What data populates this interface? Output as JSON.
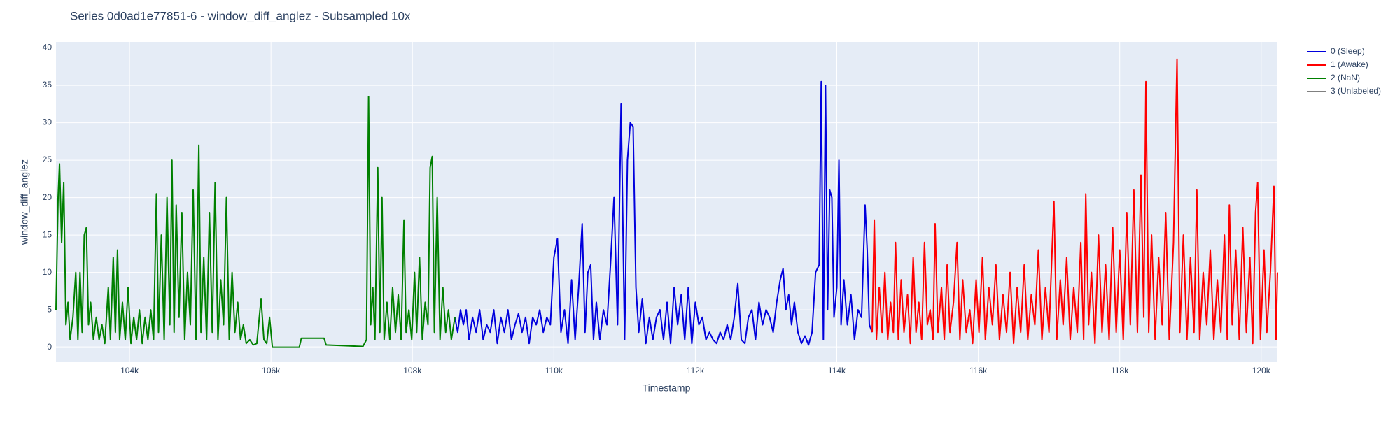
{
  "chart_data": {
    "type": "line",
    "title": "Series 0d0ad1e77851-6 - window_diff_anglez - Subsampled 10x",
    "x_label": "Timestamp",
    "y_label": "window_diff_anglez",
    "xlim": [
      102960,
      120230
    ],
    "ylim": [
      -2,
      40.8
    ],
    "xticks": [
      {
        "value": 104000,
        "label": "104k"
      },
      {
        "value": 106000,
        "label": "106k"
      },
      {
        "value": 108000,
        "label": "108k"
      },
      {
        "value": 110000,
        "label": "110k"
      },
      {
        "value": 112000,
        "label": "112k"
      },
      {
        "value": 114000,
        "label": "114k"
      },
      {
        "value": 116000,
        "label": "116k"
      },
      {
        "value": 118000,
        "label": "118k"
      },
      {
        "value": 120000,
        "label": "120k"
      }
    ],
    "yticks": [
      0,
      5,
      10,
      15,
      20,
      25,
      30,
      35,
      40
    ],
    "grid": true,
    "legend": "right",
    "series": [
      {
        "name": "0 (Sleep)",
        "color": "#0000dd",
        "x": [
          108600,
          108640,
          108680,
          108720,
          108760,
          108800,
          108850,
          108900,
          108950,
          109000,
          109050,
          109100,
          109150,
          109200,
          109250,
          109300,
          109350,
          109400,
          109450,
          109500,
          109550,
          109600,
          109650,
          109700,
          109750,
          109800,
          109850,
          109900,
          109950,
          110000,
          110050,
          110100,
          110150,
          110200,
          110250,
          110300,
          110350,
          110400,
          110440,
          110480,
          110520,
          110560,
          110600,
          110650,
          110700,
          110750,
          110800,
          110850,
          110900,
          110950,
          111000,
          111040,
          111080,
          111120,
          111160,
          111200,
          111250,
          111300,
          111350,
          111400,
          111450,
          111500,
          111550,
          111600,
          111650,
          111700,
          111750,
          111800,
          111850,
          111900,
          111950,
          112000,
          112050,
          112100,
          112150,
          112200,
          112250,
          112300,
          112350,
          112400,
          112450,
          112500,
          112550,
          112600,
          112650,
          112700,
          112750,
          112800,
          112850,
          112900,
          112950,
          113000,
          113050,
          113100,
          113150,
          113200,
          113240,
          113280,
          113320,
          113360,
          113400,
          113450,
          113500,
          113550,
          113600,
          113650,
          113700,
          113750,
          113780,
          113810,
          113840,
          113870,
          113900,
          113930,
          113960,
          114000,
          114030,
          114060,
          114100,
          114150,
          114200,
          114250,
          114300,
          114350,
          114400,
          114430,
          114460,
          114500
        ],
        "values": [
          4,
          2,
          5,
          3,
          5,
          1,
          4,
          2,
          5,
          1,
          3,
          2,
          5,
          0.5,
          4,
          2,
          5,
          1,
          3,
          4.5,
          2,
          4,
          0.5,
          4,
          3,
          5,
          2,
          4,
          3,
          12,
          14.5,
          2,
          5,
          0.5,
          9,
          1,
          8,
          16.5,
          2,
          10,
          11,
          1,
          6,
          1,
          5,
          3,
          11,
          20,
          3,
          32.5,
          1,
          25,
          30,
          29.5,
          8,
          2,
          6.5,
          0.5,
          4,
          1,
          4,
          5,
          1,
          6,
          0.5,
          8,
          3,
          7,
          1,
          8,
          0.5,
          6,
          3,
          4,
          1,
          2,
          1,
          0.5,
          2,
          1,
          3,
          1,
          4,
          8.5,
          1,
          0.5,
          4,
          5,
          1,
          6,
          3,
          5,
          4,
          2,
          6,
          9,
          10.5,
          5,
          7,
          3,
          6,
          2,
          0.5,
          1.5,
          0.3,
          2,
          10,
          11,
          35.5,
          1,
          35,
          5,
          21,
          20,
          4,
          8,
          25,
          3,
          9,
          3,
          7,
          1,
          5,
          4,
          19,
          13,
          3,
          2
        ]
      },
      {
        "name": "1 (Awake)",
        "color": "#ff0000",
        "x": [
          114500,
          114530,
          114560,
          114600,
          114640,
          114680,
          114720,
          114760,
          114800,
          114830,
          114870,
          114910,
          114950,
          115000,
          115040,
          115080,
          115120,
          115160,
          115200,
          115240,
          115280,
          115320,
          115360,
          115390,
          115430,
          115480,
          115520,
          115560,
          115600,
          115650,
          115700,
          115740,
          115780,
          115830,
          115880,
          115920,
          115970,
          116010,
          116060,
          116100,
          116150,
          116200,
          116250,
          116300,
          116350,
          116400,
          116450,
          116500,
          116550,
          116600,
          116650,
          116700,
          116750,
          116800,
          116850,
          116900,
          116950,
          117000,
          117070,
          117110,
          117160,
          117200,
          117250,
          117300,
          117350,
          117400,
          117450,
          117490,
          117520,
          117560,
          117600,
          117650,
          117700,
          117750,
          117800,
          117850,
          117900,
          117950,
          118000,
          118050,
          118100,
          118150,
          118200,
          118250,
          118300,
          118340,
          118370,
          118410,
          118450,
          118500,
          118550,
          118600,
          118650,
          118700,
          118760,
          118810,
          118850,
          118900,
          118950,
          119000,
          119050,
          119090,
          119130,
          119180,
          119230,
          119280,
          119330,
          119380,
          119430,
          119480,
          119520,
          119550,
          119590,
          119640,
          119690,
          119740,
          119790,
          119840,
          119880,
          119920,
          119950,
          119990,
          120040,
          120080,
          120130,
          120180,
          120210,
          120230
        ],
        "values": [
          2,
          17,
          1,
          8,
          2,
          10,
          1,
          6,
          2,
          14,
          1,
          9,
          2,
          7,
          0.5,
          12,
          2,
          6,
          1,
          14,
          3,
          5,
          1,
          16.5,
          2,
          8,
          1,
          11,
          2,
          6,
          14,
          1,
          9,
          2,
          5,
          0.5,
          9,
          2,
          12,
          1,
          8,
          3,
          11,
          1,
          7,
          2,
          10,
          0.5,
          8,
          2,
          11,
          1,
          7,
          3,
          13,
          1,
          8,
          2,
          19.5,
          1,
          9,
          3,
          12,
          1,
          8,
          2,
          14,
          1,
          20.5,
          3,
          10,
          0.5,
          15,
          2,
          11,
          1,
          16,
          2,
          13,
          1,
          18,
          3,
          21,
          2,
          23,
          4,
          35.5,
          2,
          15,
          1,
          12,
          3,
          18,
          1,
          14,
          38.5,
          2,
          15,
          1,
          12,
          2,
          21,
          1,
          10,
          3,
          13,
          1,
          9,
          2,
          15,
          1,
          19,
          3,
          13,
          1,
          16,
          2,
          12,
          0.5,
          18,
          22,
          1,
          13,
          2,
          10,
          21.5,
          1,
          10
        ]
      },
      {
        "name": "2 (NaN)",
        "color": "#008000",
        "x": [
          102960,
          102990,
          103010,
          103040,
          103070,
          103100,
          103130,
          103160,
          103200,
          103240,
          103270,
          103300,
          103330,
          103360,
          103390,
          103420,
          103450,
          103490,
          103530,
          103570,
          103610,
          103650,
          103700,
          103730,
          103770,
          103800,
          103830,
          103860,
          103900,
          103940,
          103980,
          104020,
          104060,
          104100,
          104140,
          104180,
          104220,
          104260,
          104300,
          104340,
          104380,
          104410,
          104450,
          104490,
          104530,
          104570,
          104600,
          104630,
          104660,
          104700,
          104740,
          104780,
          104820,
          104860,
          104900,
          104940,
          104980,
          105010,
          105050,
          105090,
          105130,
          105170,
          105210,
          105250,
          105290,
          105330,
          105370,
          105410,
          105450,
          105490,
          105530,
          105570,
          105610,
          105650,
          105700,
          105750,
          105800,
          105860,
          105900,
          105940,
          105980,
          106020,
          106400,
          106430,
          106750,
          106780,
          107300,
          107350,
          107380,
          107410,
          107440,
          107470,
          107510,
          107540,
          107570,
          107600,
          107640,
          107680,
          107720,
          107760,
          107800,
          107840,
          107880,
          107910,
          107950,
          107990,
          108030,
          108060,
          108100,
          108140,
          108180,
          108220,
          108250,
          108280,
          108310,
          108350,
          108390,
          108430,
          108470,
          108510,
          108550,
          108600
        ],
        "values": [
          5,
          20,
          24.5,
          14,
          22,
          3,
          6,
          1,
          4,
          10,
          1,
          10,
          2,
          15,
          16,
          3,
          6,
          1,
          4,
          1,
          3,
          0.5,
          8,
          1,
          12,
          2,
          13,
          1,
          6,
          1,
          8,
          0.5,
          4,
          1,
          5,
          0.5,
          4,
          1,
          5,
          1,
          20.5,
          2,
          15,
          1,
          20,
          3,
          25,
          2,
          19,
          4,
          18,
          1,
          10,
          3,
          21,
          1,
          27,
          2,
          12,
          1,
          18,
          2,
          22,
          1,
          9,
          3,
          20,
          1,
          10,
          2,
          6,
          1,
          3,
          0.5,
          1,
          0.3,
          0.5,
          6.5,
          1,
          0.5,
          4,
          0,
          0,
          1.2,
          1.2,
          0.3,
          0.1,
          1,
          33.5,
          3,
          8,
          1,
          24,
          2,
          20,
          1,
          6,
          1,
          8,
          2,
          7,
          1,
          17,
          2,
          5,
          1,
          10,
          2,
          12,
          1,
          6,
          3,
          24,
          25.5,
          2,
          20,
          1,
          8,
          2,
          5,
          1,
          4
        ]
      },
      {
        "name": "3 (Unlabeled)",
        "color": "#808080",
        "x": [],
        "values": []
      }
    ]
  }
}
